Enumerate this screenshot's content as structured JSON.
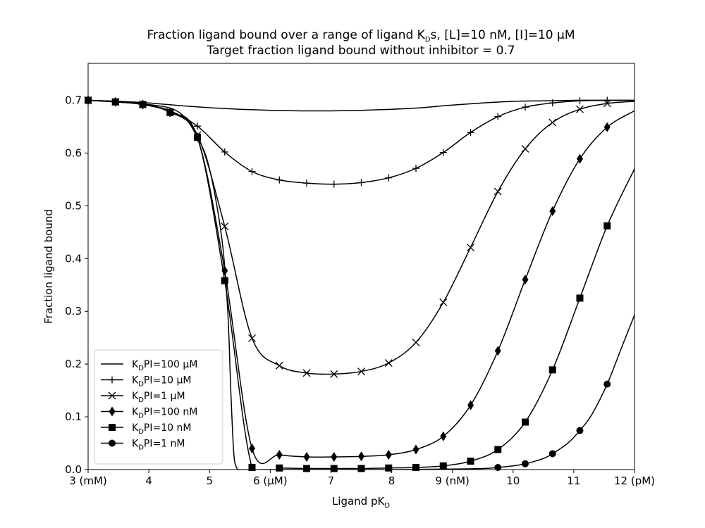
{
  "chart_data": {
    "type": "line",
    "title_lines": [
      "Fraction ligand bound over a range of ligand K_Ds, [L]=10 nM, [I]=10 μM",
      "Target fraction ligand bound without inhibitor = 0.7"
    ],
    "xlabel": "Ligand pK_D",
    "ylabel": "Fraction ligand bound",
    "xlim": [
      3,
      12
    ],
    "ylim": [
      0,
      0.77
    ],
    "x_ticks": [
      {
        "value": 3,
        "label": "3 (mM)"
      },
      {
        "value": 4,
        "label": "4"
      },
      {
        "value": 5,
        "label": "5"
      },
      {
        "value": 6,
        "label": "6 (μM)"
      },
      {
        "value": 7,
        "label": "7"
      },
      {
        "value": 8,
        "label": "8"
      },
      {
        "value": 9,
        "label": "9 (nM)"
      },
      {
        "value": 10,
        "label": "10"
      },
      {
        "value": 11,
        "label": "11"
      },
      {
        "value": 12,
        "label": "12 (pM)"
      }
    ],
    "y_ticks": [
      {
        "value": 0.0,
        "label": "0.0"
      },
      {
        "value": 0.1,
        "label": "0.1"
      },
      {
        "value": 0.2,
        "label": "0.2"
      },
      {
        "value": 0.3,
        "label": "0.3"
      },
      {
        "value": 0.4,
        "label": "0.4"
      },
      {
        "value": 0.5,
        "label": "0.5"
      },
      {
        "value": 0.6,
        "label": "0.6"
      },
      {
        "value": 0.7,
        "label": "0.7"
      }
    ],
    "grid": false,
    "legend_position": "lower-left",
    "series": [
      {
        "name": "K_DPI=100 μM",
        "marker": "none",
        "x": [
          3.0,
          3.5,
          4.0,
          4.5,
          5.0,
          5.5,
          6.0,
          6.5,
          7.0,
          7.5,
          8.0,
          8.5,
          9.0,
          9.5,
          10.0,
          10.5,
          11.0,
          11.5,
          12.0
        ],
        "y": [
          0.7,
          0.698,
          0.695,
          0.69,
          0.686,
          0.683,
          0.681,
          0.68,
          0.68,
          0.681,
          0.683,
          0.686,
          0.691,
          0.695,
          0.698,
          0.699,
          0.7,
          0.7,
          0.7
        ]
      },
      {
        "name": "K_DPI=10 μM",
        "marker": "plus",
        "x": [
          3.0,
          3.45,
          3.9,
          4.35,
          4.8,
          5.25,
          5.7,
          6.15,
          6.6,
          7.05,
          7.5,
          7.95,
          8.4,
          8.85,
          9.3,
          9.75,
          10.2,
          10.65,
          11.1,
          11.55
        ],
        "y": [
          0.7,
          0.698,
          0.693,
          0.68,
          0.651,
          0.602,
          0.565,
          0.549,
          0.543,
          0.541,
          0.544,
          0.553,
          0.571,
          0.601,
          0.639,
          0.669,
          0.687,
          0.695,
          0.699,
          0.7
        ],
        "extra_x": [
          12.0
        ],
        "extra_y": [
          0.7
        ]
      },
      {
        "name": "K_DPI=1 μM",
        "marker": "x",
        "x": [
          3.0,
          3.45,
          3.9,
          4.35,
          4.8,
          5.25,
          5.7,
          6.15,
          6.6,
          7.05,
          7.5,
          7.95,
          8.4,
          8.85,
          9.3,
          9.75,
          10.2,
          10.65,
          11.1,
          11.55
        ],
        "y": [
          0.7,
          0.697,
          0.692,
          0.678,
          0.634,
          0.461,
          0.249,
          0.197,
          0.183,
          0.181,
          0.186,
          0.202,
          0.241,
          0.317,
          0.421,
          0.527,
          0.608,
          0.658,
          0.683,
          0.694
        ],
        "extra_x": [
          12.0
        ],
        "extra_y": [
          0.698
        ]
      },
      {
        "name": "K_DPI=100 nM",
        "marker": "diamond",
        "x": [
          3.0,
          3.45,
          3.9,
          4.35,
          4.8,
          5.25,
          5.7,
          6.15,
          6.6,
          7.05,
          7.5,
          7.95,
          8.4,
          8.85,
          9.3,
          9.75,
          10.2,
          10.65,
          11.1,
          11.55
        ],
        "y": [
          0.7,
          0.697,
          0.692,
          0.677,
          0.63,
          0.377,
          0.04,
          0.028,
          0.024,
          0.024,
          0.025,
          0.028,
          0.038,
          0.063,
          0.122,
          0.225,
          0.36,
          0.49,
          0.589,
          0.649
        ],
        "extra_x": [
          12.0
        ],
        "extra_y": [
          0.68
        ]
      },
      {
        "name": "K_DPI=10 nM",
        "marker": "square",
        "x": [
          3.0,
          3.45,
          3.9,
          4.35,
          4.8,
          5.25,
          5.7,
          6.15,
          6.6,
          7.05,
          7.5,
          7.95,
          8.4,
          8.85,
          9.3,
          9.75,
          10.2,
          10.65,
          11.1,
          11.55
        ],
        "y": [
          0.7,
          0.697,
          0.692,
          0.677,
          0.63,
          0.358,
          0.004,
          0.003,
          0.002,
          0.002,
          0.002,
          0.003,
          0.004,
          0.007,
          0.016,
          0.038,
          0.09,
          0.189,
          0.325,
          0.462
        ],
        "extra_x": [
          12.0
        ],
        "extra_y": [
          0.57
        ]
      },
      {
        "name": "K_DPI=1 nM",
        "marker": "circle",
        "x": [
          9.75,
          10.2,
          10.65,
          11.1,
          11.55
        ],
        "y": [
          0.004,
          0.011,
          0.03,
          0.074,
          0.162
        ],
        "line_x": [
          3.0,
          4.0,
          4.5,
          4.8,
          5.0,
          5.2,
          5.3,
          5.35,
          5.4,
          5.45,
          5.5,
          6.0,
          7.0,
          8.0,
          9.0,
          9.5,
          9.75,
          10.0,
          10.2,
          10.5,
          10.65,
          10.9,
          11.1,
          11.3,
          11.55,
          11.8,
          12.0
        ],
        "line_y": [
          0.7,
          0.692,
          0.677,
          0.63,
          0.57,
          0.44,
          0.3,
          0.15,
          0.03,
          0.003,
          0.0,
          0.0,
          0.0,
          0.0,
          0.001,
          0.002,
          0.004,
          0.007,
          0.011,
          0.021,
          0.03,
          0.05,
          0.074,
          0.105,
          0.162,
          0.235,
          0.293
        ]
      }
    ]
  }
}
